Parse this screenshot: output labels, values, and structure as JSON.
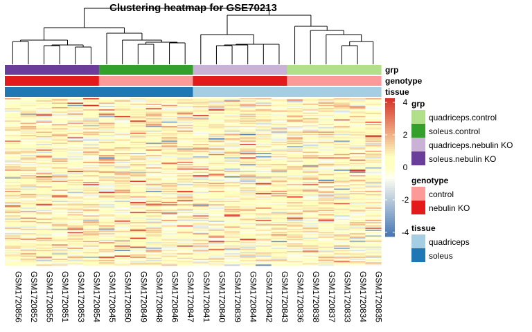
{
  "chart_data": {
    "type": "heatmap",
    "title": "Clustering heatmap for GSE70213",
    "samples": [
      "GSM1720856",
      "GSM1720852",
      "GSM1720855",
      "GSM1720851",
      "GSM1720853",
      "GSM1720854",
      "GSM1720845",
      "GSM1720850",
      "GSM1720849",
      "GSM1720848",
      "GSM1720846",
      "GSM1720847",
      "GSM1720841",
      "GSM1720840",
      "GSM1720839",
      "GSM1720844",
      "GSM1720842",
      "GSM1720843",
      "GSM1720836",
      "GSM1720838",
      "GSM1720837",
      "GSM1720833",
      "GSM1720834",
      "GSM1720835"
    ],
    "annotation_tracks": [
      {
        "name": "grp",
        "values": [
          "soleus.nebulin KO",
          "soleus.nebulin KO",
          "soleus.nebulin KO",
          "soleus.nebulin KO",
          "soleus.nebulin KO",
          "soleus.nebulin KO",
          "soleus.control",
          "soleus.control",
          "soleus.control",
          "soleus.control",
          "soleus.control",
          "soleus.control",
          "quadriceps.nebulin KO",
          "quadriceps.nebulin KO",
          "quadriceps.nebulin KO",
          "quadriceps.nebulin KO",
          "quadriceps.nebulin KO",
          "quadriceps.nebulin KO",
          "quadriceps.control",
          "quadriceps.control",
          "quadriceps.control",
          "quadriceps.control",
          "quadriceps.control",
          "quadriceps.control"
        ]
      },
      {
        "name": "genotype",
        "values": [
          "nebulin KO",
          "nebulin KO",
          "nebulin KO",
          "nebulin KO",
          "nebulin KO",
          "nebulin KO",
          "control",
          "control",
          "control",
          "control",
          "control",
          "control",
          "nebulin KO",
          "nebulin KO",
          "nebulin KO",
          "nebulin KO",
          "nebulin KO",
          "nebulin KO",
          "control",
          "control",
          "control",
          "control",
          "control",
          "control"
        ]
      },
      {
        "name": "tissue",
        "values": [
          "soleus",
          "soleus",
          "soleus",
          "soleus",
          "soleus",
          "soleus",
          "soleus",
          "soleus",
          "soleus",
          "soleus",
          "soleus",
          "soleus",
          "quadriceps",
          "quadriceps",
          "quadriceps",
          "quadriceps",
          "quadriceps",
          "quadriceps",
          "quadriceps",
          "quadriceps",
          "quadriceps",
          "quadriceps",
          "quadriceps",
          "quadriceps"
        ]
      }
    ],
    "color_scale": {
      "min": -4,
      "max": 4,
      "ticks": [
        "4",
        "2",
        "0",
        "-2",
        "-4"
      ],
      "low": "#4575b4",
      "mid": "#ffffbf",
      "high": "#d73027"
    },
    "legend": [
      {
        "title": "grp",
        "items": [
          {
            "label": "quadriceps.control",
            "color": "#b2df8a"
          },
          {
            "label": "soleus.control",
            "color": "#33a02c"
          },
          {
            "label": "quadriceps.nebulin KO",
            "color": "#cab2d6"
          },
          {
            "label": "soleus.nebulin KO",
            "color": "#6a3d9a"
          }
        ]
      },
      {
        "title": "genotype",
        "items": [
          {
            "label": "control",
            "color": "#fb9a99"
          },
          {
            "label": "nebulin KO",
            "color": "#e31a1c"
          }
        ]
      },
      {
        "title": "tissue",
        "items": [
          {
            "label": "quadriceps",
            "color": "#a6cee3"
          },
          {
            "label": "soleus",
            "color": "#1f78b4"
          }
        ]
      }
    ]
  }
}
